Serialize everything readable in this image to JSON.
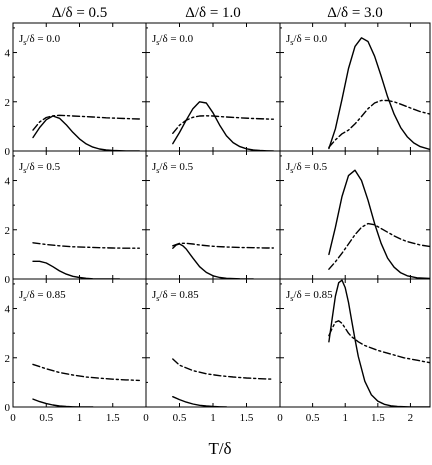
{
  "chart_data": {
    "type": "line",
    "figure": {
      "column_titles": [
        "Δ/δ = 0.5",
        "Δ/δ = 1.0",
        "Δ/δ = 3.0"
      ],
      "xlabel": "T/δ",
      "row_label_prefix": "J",
      "row_label_sub": "s",
      "row_label_suffix": "/δ = ",
      "rows": [
        "0.0",
        "0.5",
        "0.85"
      ],
      "ylim": [
        0,
        5.2
      ],
      "yticks": [
        0,
        2,
        4
      ],
      "grid": false,
      "legend": "none"
    },
    "panels": [
      {
        "row": 0,
        "col": 0,
        "label_value": "0.0",
        "xlim": [
          0,
          2
        ],
        "xticks": [
          0,
          0.5,
          1,
          1.5
        ],
        "series": [
          {
            "style": "solid",
            "x": [
              0.3,
              0.4,
              0.5,
              0.6,
              0.7,
              0.8,
              0.9,
              1.0,
              1.1,
              1.2,
              1.3,
              1.4,
              1.5,
              1.7,
              1.9
            ],
            "y": [
              0.55,
              0.95,
              1.27,
              1.42,
              1.33,
              1.07,
              0.76,
              0.49,
              0.29,
              0.16,
              0.08,
              0.04,
              0.02,
              0.0,
              0.0
            ]
          },
          {
            "style": "dashdot",
            "x": [
              0.3,
              0.4,
              0.5,
              0.6,
              0.7,
              0.8,
              0.9,
              1.0,
              1.2,
              1.4,
              1.6,
              1.8,
              1.9
            ],
            "y": [
              0.85,
              1.18,
              1.36,
              1.43,
              1.45,
              1.44,
              1.42,
              1.41,
              1.38,
              1.35,
              1.33,
              1.31,
              1.3
            ]
          }
        ]
      },
      {
        "row": 0,
        "col": 1,
        "label_value": "0.0",
        "xlim": [
          0,
          2
        ],
        "xticks": [
          0,
          0.5,
          1,
          1.5
        ],
        "series": [
          {
            "style": "solid",
            "x": [
              0.4,
              0.5,
              0.6,
              0.7,
              0.8,
              0.9,
              1.0,
              1.1,
              1.2,
              1.3,
              1.4,
              1.5,
              1.6,
              1.7,
              1.8,
              1.9
            ],
            "y": [
              0.3,
              0.75,
              1.25,
              1.72,
              2.0,
              1.95,
              1.55,
              1.05,
              0.62,
              0.34,
              0.18,
              0.09,
              0.04,
              0.02,
              0.01,
              0.0
            ]
          },
          {
            "style": "dashdot",
            "x": [
              0.4,
              0.5,
              0.6,
              0.7,
              0.8,
              0.9,
              1.0,
              1.2,
              1.4,
              1.6,
              1.8,
              1.9
            ],
            "y": [
              0.72,
              1.05,
              1.25,
              1.37,
              1.42,
              1.43,
              1.42,
              1.38,
              1.35,
              1.32,
              1.3,
              1.29
            ]
          }
        ]
      },
      {
        "row": 0,
        "col": 2,
        "label_value": "0.0",
        "xlim": [
          0,
          2.3
        ],
        "xticks": [
          0,
          0.5,
          1,
          1.5,
          2
        ],
        "series": [
          {
            "style": "solid",
            "x": [
              0.75,
              0.85,
              0.95,
              1.05,
              1.15,
              1.25,
              1.35,
              1.45,
              1.55,
              1.65,
              1.75,
              1.85,
              1.95,
              2.05,
              2.15,
              2.3
            ],
            "y": [
              0.1,
              0.9,
              2.1,
              3.35,
              4.25,
              4.6,
              4.45,
              3.85,
              3.05,
              2.2,
              1.5,
              0.95,
              0.58,
              0.33,
              0.18,
              0.06
            ]
          },
          {
            "style": "dashdot",
            "x": [
              0.75,
              0.85,
              0.95,
              1.05,
              1.15,
              1.25,
              1.35,
              1.45,
              1.55,
              1.65,
              1.75,
              1.85,
              1.95,
              2.05,
              2.15,
              2.3
            ],
            "y": [
              0.15,
              0.45,
              0.7,
              0.85,
              1.1,
              1.4,
              1.72,
              1.95,
              2.05,
              2.05,
              2.0,
              1.9,
              1.8,
              1.7,
              1.6,
              1.5
            ]
          }
        ]
      },
      {
        "row": 1,
        "col": 0,
        "label_value": "0.5",
        "xlim": [
          0,
          2
        ],
        "xticks": [
          0,
          0.5,
          1,
          1.5
        ],
        "series": [
          {
            "style": "solid",
            "x": [
              0.3,
              0.4,
              0.5,
              0.6,
              0.7,
              0.8,
              0.9,
              1.0,
              1.1,
              1.2,
              1.4,
              1.6
            ],
            "y": [
              0.72,
              0.72,
              0.65,
              0.5,
              0.33,
              0.2,
              0.11,
              0.06,
              0.03,
              0.01,
              0.0,
              0.0
            ]
          },
          {
            "style": "dashdot",
            "x": [
              0.3,
              0.5,
              0.7,
              0.9,
              1.1,
              1.3,
              1.5,
              1.7,
              1.9
            ],
            "y": [
              1.47,
              1.4,
              1.35,
              1.31,
              1.29,
              1.27,
              1.26,
              1.25,
              1.25
            ]
          }
        ]
      },
      {
        "row": 1,
        "col": 1,
        "label_value": "0.5",
        "xlim": [
          0,
          2
        ],
        "xticks": [
          0,
          0.5,
          1,
          1.5
        ],
        "series": [
          {
            "style": "solid",
            "x": [
              0.4,
              0.45,
              0.5,
              0.55,
              0.6,
              0.7,
              0.8,
              0.9,
              1.0,
              1.1,
              1.2,
              1.4,
              1.6
            ],
            "y": [
              1.25,
              1.38,
              1.42,
              1.35,
              1.22,
              0.85,
              0.5,
              0.27,
              0.13,
              0.06,
              0.03,
              0.01,
              0.0
            ]
          },
          {
            "style": "dashdot",
            "x": [
              0.4,
              0.5,
              0.6,
              0.7,
              0.8,
              1.0,
              1.2,
              1.4,
              1.6,
              1.8,
              1.9
            ],
            "y": [
              1.35,
              1.45,
              1.45,
              1.42,
              1.38,
              1.33,
              1.3,
              1.28,
              1.27,
              1.26,
              1.26
            ]
          }
        ]
      },
      {
        "row": 1,
        "col": 2,
        "label_value": "0.5",
        "xlim": [
          0,
          2.3
        ],
        "xticks": [
          0,
          0.5,
          1,
          1.5,
          2
        ],
        "series": [
          {
            "style": "solid",
            "x": [
              0.75,
              0.85,
              0.95,
              1.05,
              1.15,
              1.25,
              1.35,
              1.45,
              1.55,
              1.65,
              1.75,
              1.85,
              1.95,
              2.1,
              2.3
            ],
            "y": [
              1.0,
              2.1,
              3.35,
              4.2,
              4.42,
              4.0,
              3.2,
              2.25,
              1.45,
              0.85,
              0.48,
              0.25,
              0.13,
              0.05,
              0.02
            ]
          },
          {
            "style": "dashdot",
            "x": [
              0.75,
              0.85,
              0.95,
              1.05,
              1.15,
              1.25,
              1.35,
              1.45,
              1.55,
              1.65,
              1.75,
              1.85,
              1.95,
              2.05,
              2.15,
              2.3
            ],
            "y": [
              0.4,
              0.7,
              1.05,
              1.42,
              1.8,
              2.1,
              2.25,
              2.2,
              2.05,
              1.9,
              1.75,
              1.62,
              1.52,
              1.45,
              1.38,
              1.32
            ]
          }
        ]
      },
      {
        "row": 2,
        "col": 0,
        "label_value": "0.85",
        "xlim": [
          0,
          2
        ],
        "xticks": [
          0,
          0.5,
          1,
          1.5
        ],
        "series": [
          {
            "style": "solid",
            "x": [
              0.3,
              0.4,
              0.5,
              0.6,
              0.7,
              0.8,
              0.9,
              1.0,
              1.1,
              1.2
            ],
            "y": [
              0.32,
              0.22,
              0.14,
              0.08,
              0.04,
              0.02,
              0.01,
              0.0,
              0.0,
              0.0
            ]
          },
          {
            "style": "dashdot",
            "x": [
              0.3,
              0.5,
              0.7,
              0.9,
              1.1,
              1.3,
              1.5,
              1.7,
              1.9
            ],
            "y": [
              1.73,
              1.55,
              1.4,
              1.3,
              1.22,
              1.17,
              1.13,
              1.1,
              1.08
            ]
          }
        ]
      },
      {
        "row": 2,
        "col": 1,
        "label_value": "0.85",
        "xlim": [
          0,
          2
        ],
        "xticks": [
          0,
          0.5,
          1,
          1.5
        ],
        "series": [
          {
            "style": "solid",
            "x": [
              0.4,
              0.5,
              0.6,
              0.7,
              0.8,
              0.9,
              1.0,
              1.1,
              1.2
            ],
            "y": [
              0.42,
              0.3,
              0.2,
              0.12,
              0.07,
              0.04,
              0.02,
              0.01,
              0.0
            ]
          },
          {
            "style": "dashdot",
            "x": [
              0.4,
              0.5,
              0.7,
              0.9,
              1.1,
              1.3,
              1.5,
              1.7,
              1.9
            ],
            "y": [
              1.95,
              1.7,
              1.48,
              1.35,
              1.27,
              1.22,
              1.18,
              1.15,
              1.13
            ]
          }
        ]
      },
      {
        "row": 2,
        "col": 2,
        "label_value": "0.85",
        "xlim": [
          0,
          2.3
        ],
        "xticks": [
          0,
          0.5,
          1,
          1.5,
          2
        ],
        "series": [
          {
            "style": "solid",
            "x": [
              0.75,
              0.8,
              0.85,
              0.9,
              0.95,
              1.0,
              1.05,
              1.1,
              1.15,
              1.2,
              1.3,
              1.4,
              1.5,
              1.6,
              1.7,
              1.8,
              2.0,
              2.2,
              2.3
            ],
            "y": [
              2.65,
              3.6,
              4.5,
              5.05,
              5.15,
              4.85,
              4.25,
              3.5,
              2.75,
              2.05,
              1.05,
              0.5,
              0.24,
              0.11,
              0.05,
              0.02,
              0.0,
              0.0,
              0.0
            ]
          },
          {
            "style": "dashdot",
            "x": [
              0.75,
              0.8,
              0.85,
              0.9,
              0.95,
              1.0,
              1.05,
              1.1,
              1.2,
              1.3,
              1.5,
              1.7,
              1.9,
              2.1,
              2.3
            ],
            "y": [
              2.9,
              3.2,
              3.45,
              3.5,
              3.4,
              3.2,
              3.0,
              2.85,
              2.65,
              2.5,
              2.3,
              2.15,
              2.0,
              1.9,
              1.8
            ]
          }
        ]
      }
    ]
  }
}
